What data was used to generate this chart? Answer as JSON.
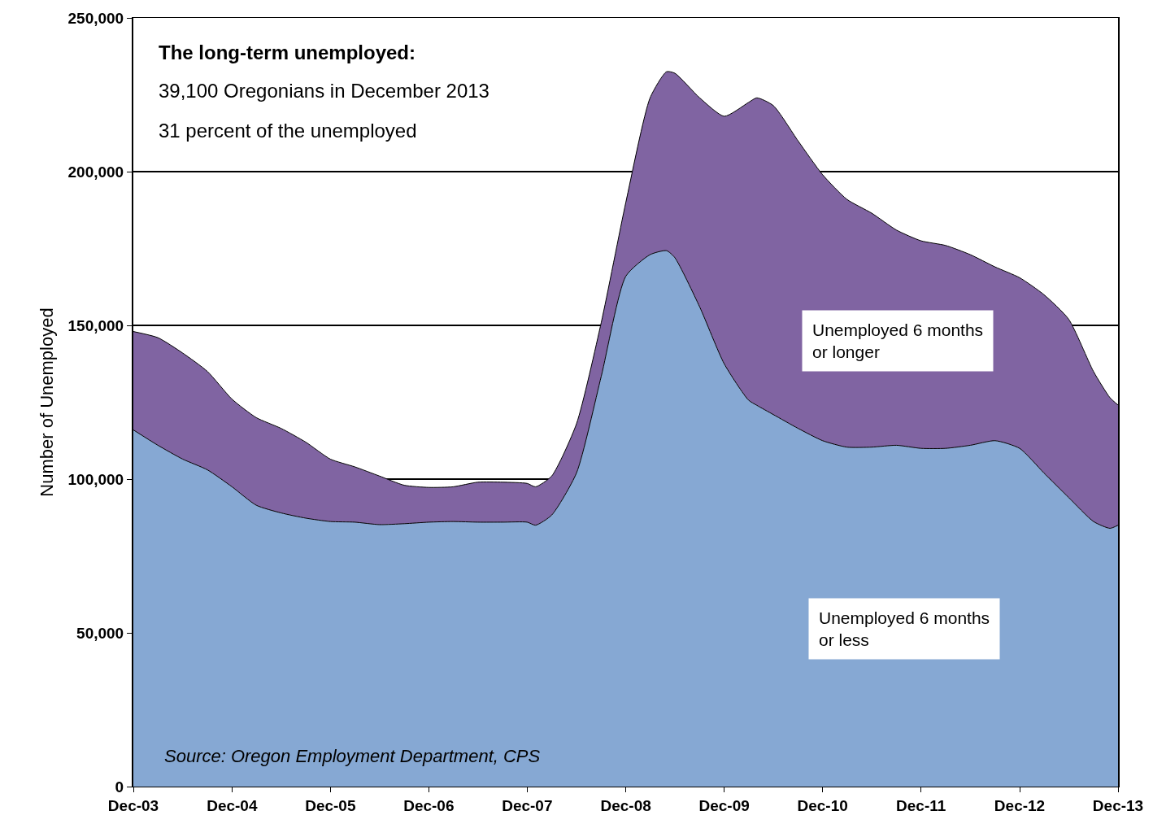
{
  "chart_data": {
    "type": "area",
    "stacked": true,
    "ylabel": "Number of Unemployed",
    "x": [
      "2003-12",
      "2004-03",
      "2004-06",
      "2004-09",
      "2004-12",
      "2005-03",
      "2005-06",
      "2005-09",
      "2005-12",
      "2006-03",
      "2006-06",
      "2006-09",
      "2006-12",
      "2007-03",
      "2007-06",
      "2007-09",
      "2007-12",
      "2008-01",
      "2008-03",
      "2008-06",
      "2008-09",
      "2008-12",
      "2009-03",
      "2009-05",
      "2009-06",
      "2009-09",
      "2009-12",
      "2010-03",
      "2010-04",
      "2010-06",
      "2010-09",
      "2010-12",
      "2011-03",
      "2011-06",
      "2011-09",
      "2011-12",
      "2012-03",
      "2012-06",
      "2012-09",
      "2012-12",
      "2013-03",
      "2013-06",
      "2013-09",
      "2013-11",
      "2013-12"
    ],
    "series": [
      {
        "name": "Unemployed 6 months or less",
        "color": "#86a8d3",
        "values": [
          116000,
          111000,
          106500,
          103000,
          97500,
          91500,
          89000,
          87300,
          86200,
          86000,
          85200,
          85500,
          86000,
          86200,
          86000,
          86000,
          86000,
          85000,
          88300,
          102000,
          133500,
          166000,
          173000,
          174300,
          172000,
          156000,
          137500,
          125700,
          124000,
          121000,
          116500,
          112500,
          110400,
          110400,
          111000,
          110000,
          110000,
          111000,
          112500,
          110000,
          102000,
          94000,
          86200,
          84000,
          85000
        ]
      },
      {
        "name": "Unemployed 6 months or longer",
        "color": "#8064a2",
        "values": [
          32000,
          35000,
          34500,
          32000,
          28500,
          28500,
          27500,
          24700,
          20300,
          18000,
          15800,
          12500,
          11300,
          11300,
          13000,
          13000,
          12600,
          12500,
          12700,
          16000,
          17500,
          24000,
          51000,
          58200,
          60000,
          68000,
          80500,
          96800,
          100000,
          100500,
          93500,
          86500,
          80600,
          76100,
          70000,
          67500,
          66000,
          62000,
          56500,
          55500,
          58000,
          58000,
          48800,
          42500,
          39100
        ]
      }
    ],
    "xlim": [
      "2003-12",
      "2013-12"
    ],
    "xticks": [
      {
        "value": "2003-12",
        "label": "Dec-03"
      },
      {
        "value": "2004-12",
        "label": "Dec-04"
      },
      {
        "value": "2005-12",
        "label": "Dec-05"
      },
      {
        "value": "2006-12",
        "label": "Dec-06"
      },
      {
        "value": "2007-12",
        "label": "Dec-07"
      },
      {
        "value": "2008-12",
        "label": "Dec-08"
      },
      {
        "value": "2009-12",
        "label": "Dec-09"
      },
      {
        "value": "2010-12",
        "label": "Dec-10"
      },
      {
        "value": "2011-12",
        "label": "Dec-11"
      },
      {
        "value": "2012-12",
        "label": "Dec-12"
      },
      {
        "value": "2013-12",
        "label": "Dec-13"
      }
    ],
    "ylim": [
      0,
      250000
    ],
    "yticks": [
      {
        "value": 0,
        "label": "0"
      },
      {
        "value": 50000,
        "label": "50,000"
      },
      {
        "value": 100000,
        "label": "100,000"
      },
      {
        "value": 150000,
        "label": "150,000"
      },
      {
        "value": 200000,
        "label": "200,000"
      },
      {
        "value": 250000,
        "label": "250,000"
      }
    ],
    "grid": "y",
    "legend": false,
    "annotations": [
      "The long-term unemployed:",
      "39,100 Oregonians in December 2013",
      "31 percent of the unemployed",
      "Source: Oregon Employment Department, CPS"
    ]
  }
}
